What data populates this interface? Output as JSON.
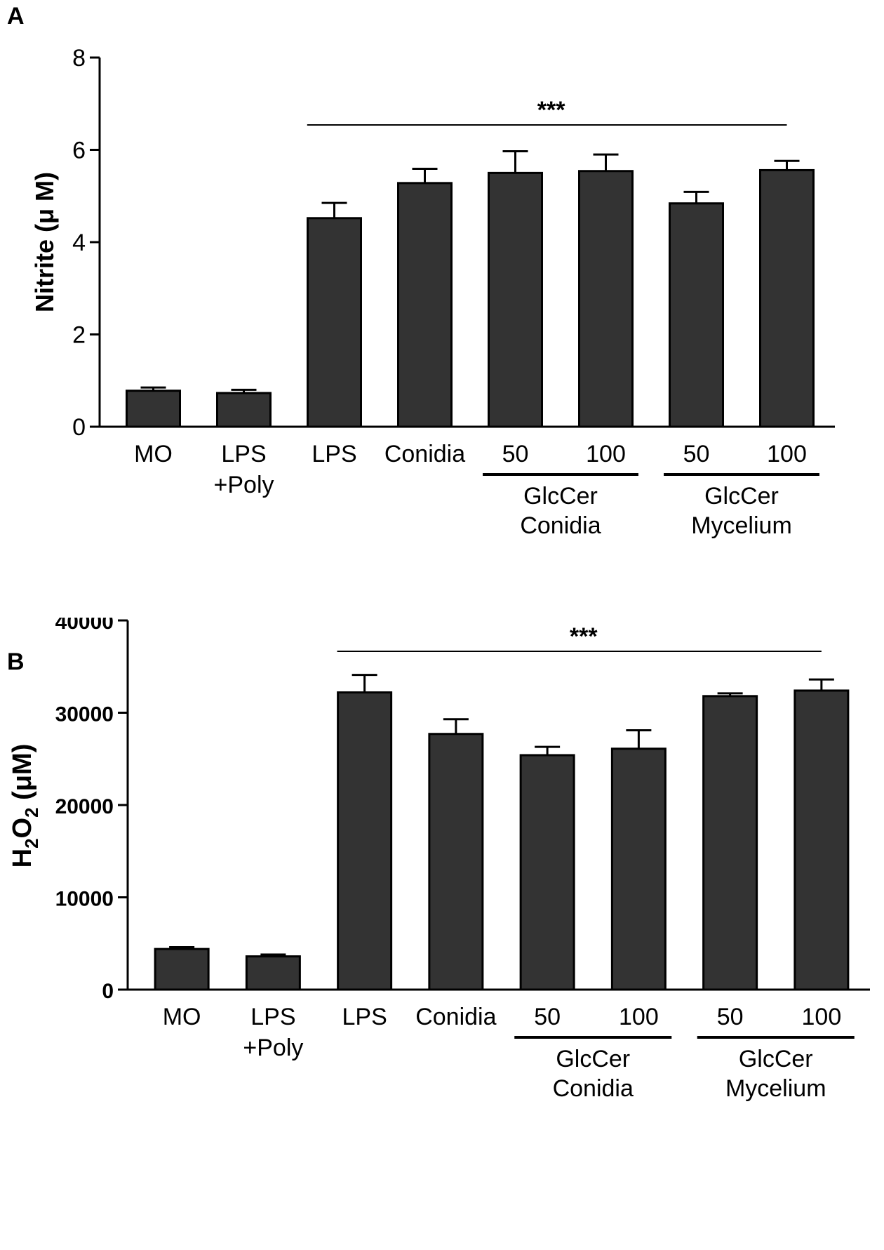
{
  "chart_data": [
    {
      "type": "bar",
      "panel_label": "A",
      "categories": [
        "MO",
        "LPS\n+Poly",
        "LPS",
        "Conidia",
        "50",
        "100",
        "50",
        "100"
      ],
      "values": [
        0.78,
        0.73,
        4.52,
        5.28,
        5.5,
        5.54,
        4.84,
        5.56
      ],
      "errors": [
        0.07,
        0.07,
        0.33,
        0.31,
        0.47,
        0.36,
        0.25,
        0.2
      ],
      "ylabel": "Nitrite (μ M)",
      "ylim": [
        0,
        8
      ],
      "yticks": [
        0,
        2,
        4,
        6,
        8
      ],
      "group_labels": [
        {
          "line1": "GlcCer",
          "line2": "Conidia",
          "from": 4,
          "to": 5
        },
        {
          "line1": "GlcCer",
          "line2": "Mycelium",
          "from": 6,
          "to": 7
        }
      ],
      "significance": {
        "text": "***",
        "from": 2,
        "to": 7
      },
      "bar_color": "#333333"
    },
    {
      "type": "bar",
      "panel_label": "B",
      "categories": [
        "MO",
        "LPS\n+Poly",
        "LPS",
        "Conidia",
        "50",
        "100",
        "50",
        "100"
      ],
      "values": [
        4400,
        3600,
        32200,
        27700,
        25400,
        26100,
        31800,
        32400
      ],
      "errors": [
        200,
        200,
        1900,
        1600,
        900,
        2000,
        300,
        1200
      ],
      "ylabel_main": "H",
      "ylabel_sub1": "2",
      "ylabel_mid": "O",
      "ylabel_sub2": "2",
      "ylabel_tail": " (μM)",
      "ylim": [
        0,
        40000
      ],
      "yticks": [
        0,
        10000,
        20000,
        30000,
        40000
      ],
      "group_labels": [
        {
          "line1": "GlcCer",
          "line2": "Conidia",
          "from": 4,
          "to": 5
        },
        {
          "line1": "GlcCer",
          "line2": "Mycelium",
          "from": 6,
          "to": 7
        }
      ],
      "significance": {
        "text": "***",
        "from": 2,
        "to": 7
      },
      "bar_color": "#333333"
    }
  ]
}
